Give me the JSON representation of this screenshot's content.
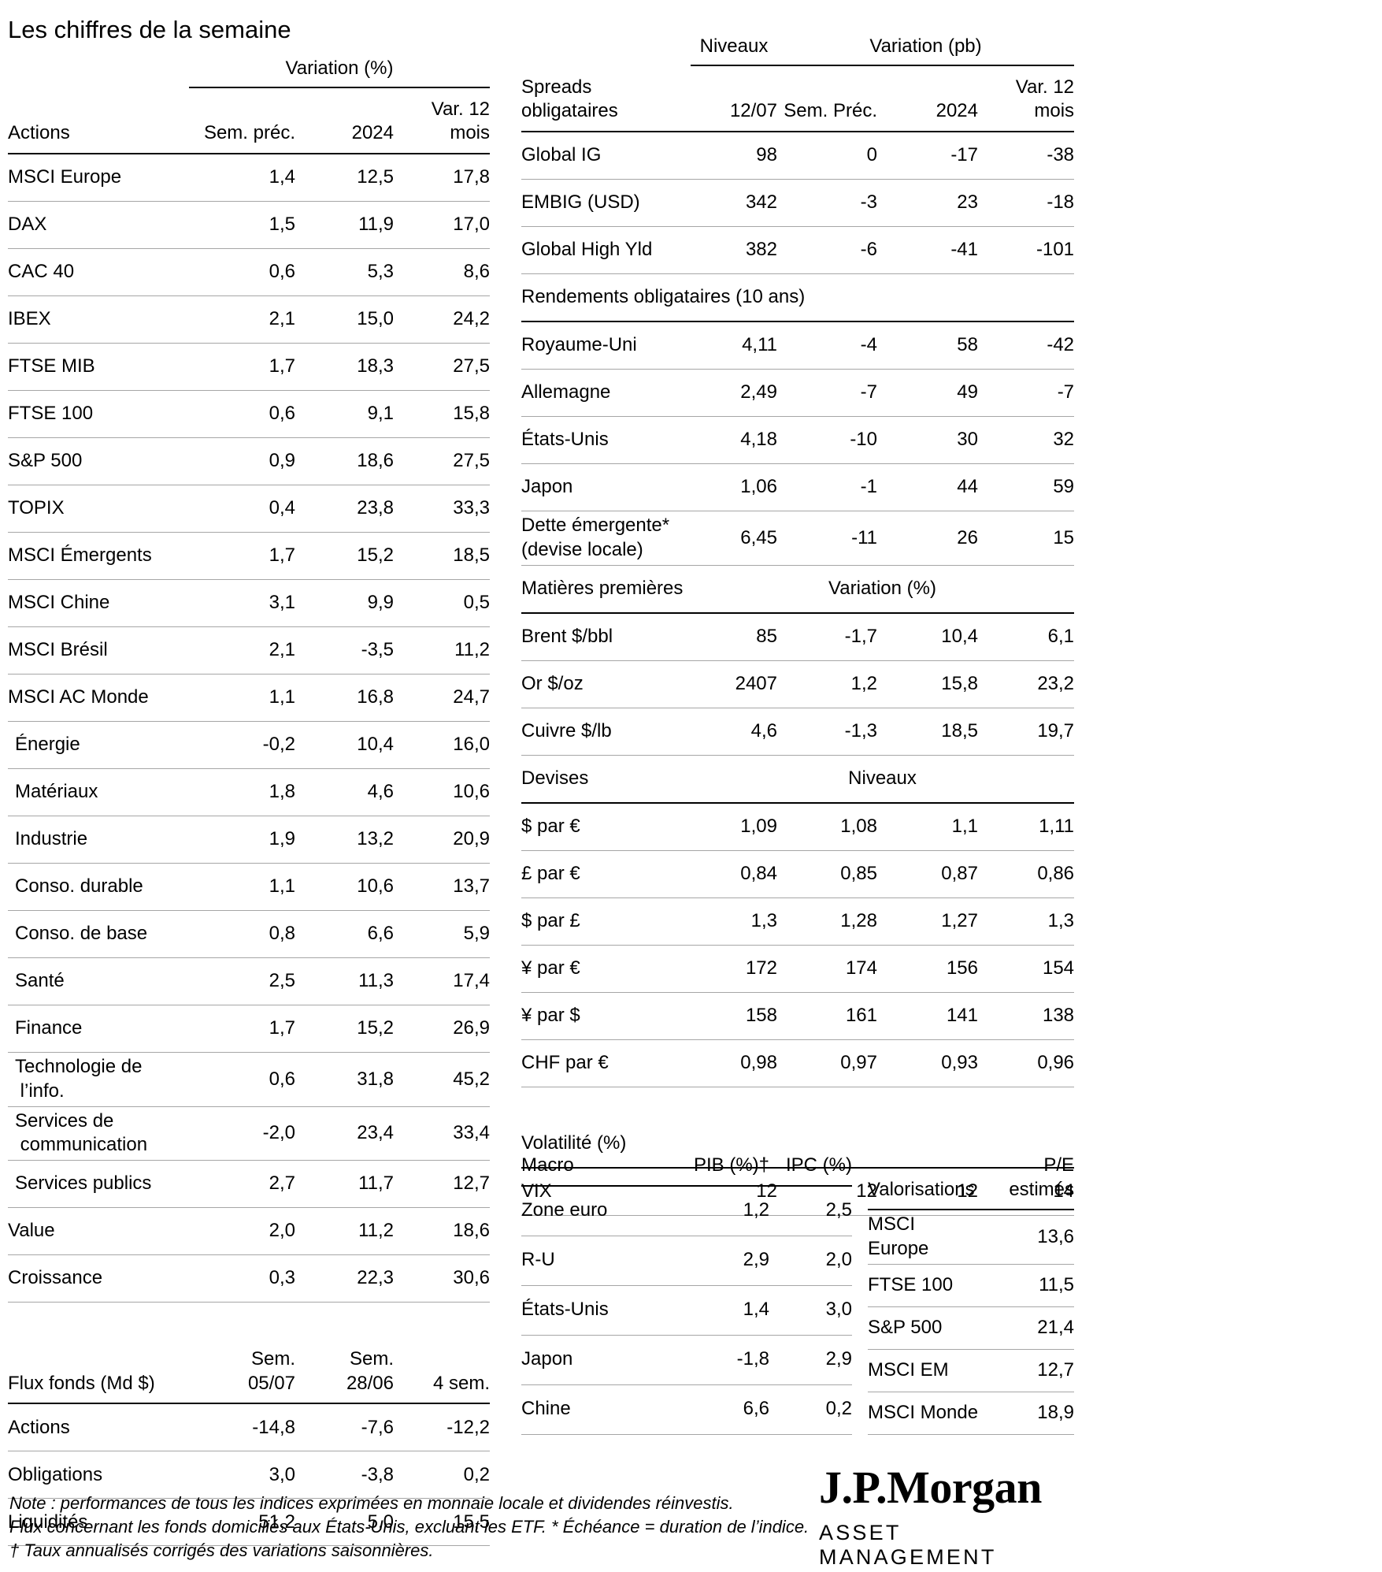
{
  "title": "Les chiffres de la semaine",
  "actions": {
    "group_header": "Variation (%)",
    "col_label": "Actions",
    "col_prev": "Sem. préc.",
    "col_2024": "2024",
    "col_12m": "Var. 12\nmois",
    "rows": [
      {
        "label": "MSCI Europe",
        "values": [
          "1,4",
          "12,5",
          "17,8"
        ]
      },
      {
        "label": "DAX",
        "values": [
          "1,5",
          "11,9",
          "17,0"
        ]
      },
      {
        "label": "CAC 40",
        "values": [
          "0,6",
          "5,3",
          "8,6"
        ]
      },
      {
        "label": "IBEX",
        "values": [
          "2,1",
          "15,0",
          "24,2"
        ]
      },
      {
        "label": "FTSE MIB",
        "values": [
          "1,7",
          "18,3",
          "27,5"
        ]
      },
      {
        "label": "FTSE 100",
        "values": [
          "0,6",
          "9,1",
          "15,8"
        ]
      },
      {
        "label": "S&P 500",
        "values": [
          "0,9",
          "18,6",
          "27,5"
        ]
      },
      {
        "label": "TOPIX",
        "values": [
          "0,4",
          "23,8",
          "33,3"
        ]
      },
      {
        "label": "MSCI Émergents",
        "values": [
          "1,7",
          "15,2",
          "18,5"
        ]
      },
      {
        "label": "MSCI Chine",
        "values": [
          "3,1",
          "9,9",
          "0,5"
        ]
      },
      {
        "label": "MSCI Brésil",
        "values": [
          "2,1",
          "-3,5",
          "11,2"
        ]
      },
      {
        "label": "MSCI AC Monde",
        "values": [
          "1,1",
          "16,8",
          "24,7"
        ]
      },
      {
        "label": "Énergie",
        "indent": true,
        "values": [
          "-0,2",
          "10,4",
          "16,0"
        ]
      },
      {
        "label": "Matériaux",
        "indent": true,
        "values": [
          "1,8",
          "4,6",
          "10,6"
        ]
      },
      {
        "label": "Industrie",
        "indent": true,
        "values": [
          "1,9",
          "13,2",
          "20,9"
        ]
      },
      {
        "label": "Conso. durable",
        "indent": true,
        "values": [
          "1,1",
          "10,6",
          "13,7"
        ]
      },
      {
        "label": "Conso. de base",
        "indent": true,
        "values": [
          "0,8",
          "6,6",
          "5,9"
        ]
      },
      {
        "label": "Santé",
        "indent": true,
        "values": [
          "2,5",
          "11,3",
          "17,4"
        ]
      },
      {
        "label": "Finance",
        "indent": true,
        "values": [
          "1,7",
          "15,2",
          "26,9"
        ]
      },
      {
        "label": "Technologie de\n l’info.",
        "indent": true,
        "values": [
          "0,6",
          "31,8",
          "45,2"
        ]
      },
      {
        "label": "Services de\n communication",
        "indent": true,
        "values": [
          "-2,0",
          "23,4",
          "33,4"
        ]
      },
      {
        "label": "Services publics",
        "indent": true,
        "values": [
          "2,7",
          "11,7",
          "12,7"
        ]
      },
      {
        "label": "Value",
        "values": [
          "2,0",
          "11,2",
          "18,6"
        ]
      },
      {
        "label": "Croissance",
        "values": [
          "0,3",
          "22,3",
          "30,6"
        ]
      }
    ]
  },
  "flux": {
    "col_label": "Flux fonds (Md $)",
    "col1": "Sem.\n05/07",
    "col2": "Sem.\n28/06",
    "col3": "4 sem.",
    "rows": [
      {
        "label": "Actions",
        "values": [
          "-14,8",
          "-7,6",
          "-12,2"
        ]
      },
      {
        "label": "Obligations",
        "values": [
          "3,0",
          "-3,8",
          "0,2"
        ]
      },
      {
        "label": "Liquidités",
        "values": [
          "51,2",
          "5,0",
          "15,5"
        ]
      }
    ]
  },
  "fixed_income": {
    "group_niveaux": "Niveaux",
    "group_variation": "Variation (pb)",
    "header": {
      "label": "Spreads\nobligataires",
      "c1": "12/07",
      "c2": "Sem. Préc.",
      "c3": "2024",
      "c4": "Var. 12\nmois"
    },
    "spreads_rows": [
      {
        "label": "Global IG",
        "values": [
          "98",
          "0",
          "-17",
          "-38"
        ]
      },
      {
        "label": "EMBIG (USD)",
        "values": [
          "342",
          "-3",
          "23",
          "-18"
        ]
      },
      {
        "label": "Global High Yld",
        "values": [
          "382",
          "-6",
          "-41",
          "-101"
        ]
      }
    ],
    "yields_header": "Rendements obligataires (10 ans)",
    "yields_rows": [
      {
        "label": "Royaume-Uni",
        "values": [
          "4,11",
          "-4",
          "58",
          "-42"
        ]
      },
      {
        "label": "Allemagne",
        "values": [
          "2,49",
          "-7",
          "49",
          "-7"
        ]
      },
      {
        "label": "États-Unis",
        "values": [
          "4,18",
          "-10",
          "30",
          "32"
        ]
      },
      {
        "label": "Japon",
        "values": [
          "1,06",
          "-1",
          "44",
          "59"
        ]
      },
      {
        "label": "Dette émergente*\n(devise locale)",
        "values": [
          "6,45",
          "-11",
          "26",
          "15"
        ]
      }
    ],
    "commodities_header": "Matières premières",
    "commodities_subheader": "Variation (%)",
    "commodities_rows": [
      {
        "label": "Brent $/bbl",
        "values": [
          "85",
          "-1,7",
          "10,4",
          "6,1"
        ]
      },
      {
        "label": "Or $/oz",
        "values": [
          "2407",
          "1,2",
          "15,8",
          "23,2"
        ]
      },
      {
        "label": "Cuivre $/lb",
        "values": [
          "4,6",
          "-1,3",
          "18,5",
          "19,7"
        ]
      }
    ],
    "fx_header": "Devises",
    "fx_subheader": "Niveaux",
    "fx_rows": [
      {
        "label": "$ par €",
        "values": [
          "1,09",
          "1,08",
          "1,1",
          "1,11"
        ]
      },
      {
        "label": "£ par €",
        "values": [
          "0,84",
          "0,85",
          "0,87",
          "0,86"
        ]
      },
      {
        "label": "$ par £",
        "values": [
          "1,3",
          "1,28",
          "1,27",
          "1,3"
        ]
      },
      {
        "label": "¥ par €",
        "values": [
          "172",
          "174",
          "156",
          "154"
        ]
      },
      {
        "label": "¥ par $",
        "values": [
          "158",
          "161",
          "141",
          "138"
        ]
      },
      {
        "label": "CHF par €",
        "values": [
          "0,98",
          "0,97",
          "0,93",
          "0,96"
        ]
      }
    ],
    "volatility_header": "Volatilité (%)",
    "volatility_rows": [
      {
        "label": "VIX",
        "values": [
          "12",
          "12",
          "12",
          "14"
        ]
      }
    ]
  },
  "macro": {
    "col_label": "Macro",
    "col_pib": "PIB (%)†",
    "col_ipc": "IPC (%)",
    "rows": [
      {
        "label": "Zone euro",
        "values": [
          "1,2",
          "2,5"
        ]
      },
      {
        "label": "R-U",
        "values": [
          "2,9",
          "2,0"
        ]
      },
      {
        "label": "États-Unis",
        "values": [
          "1,4",
          "3,0"
        ]
      },
      {
        "label": "Japon",
        "values": [
          "-1,8",
          "2,9"
        ]
      },
      {
        "label": "Chine",
        "values": [
          "6,6",
          "0,2"
        ]
      }
    ]
  },
  "valuations": {
    "col_label": "Valorisations",
    "col_pe": "P/E estimés",
    "rows": [
      {
        "label": "MSCI Europe",
        "value": "13,6"
      },
      {
        "label": "FTSE 100",
        "value": "11,5"
      },
      {
        "label": "S&P 500",
        "value": "21,4"
      },
      {
        "label": "MSCI EM",
        "value": "12,7"
      },
      {
        "label": "MSCI Monde",
        "value": "18,9"
      }
    ]
  },
  "notes": {
    "line1": "Note : performances de tous les indices exprimées en monnaie locale et dividendes réinvestis.",
    "line2": "Flux concernant les fonds domiciliés aux États-Unis, excluant les ETF. * Échéance = duration de l’indice.",
    "line3": "† Taux annualisés corrigés des variations saisonnières."
  },
  "logo": {
    "brand": "J.P.Morgan",
    "division": "ASSET MANAGEMENT"
  }
}
